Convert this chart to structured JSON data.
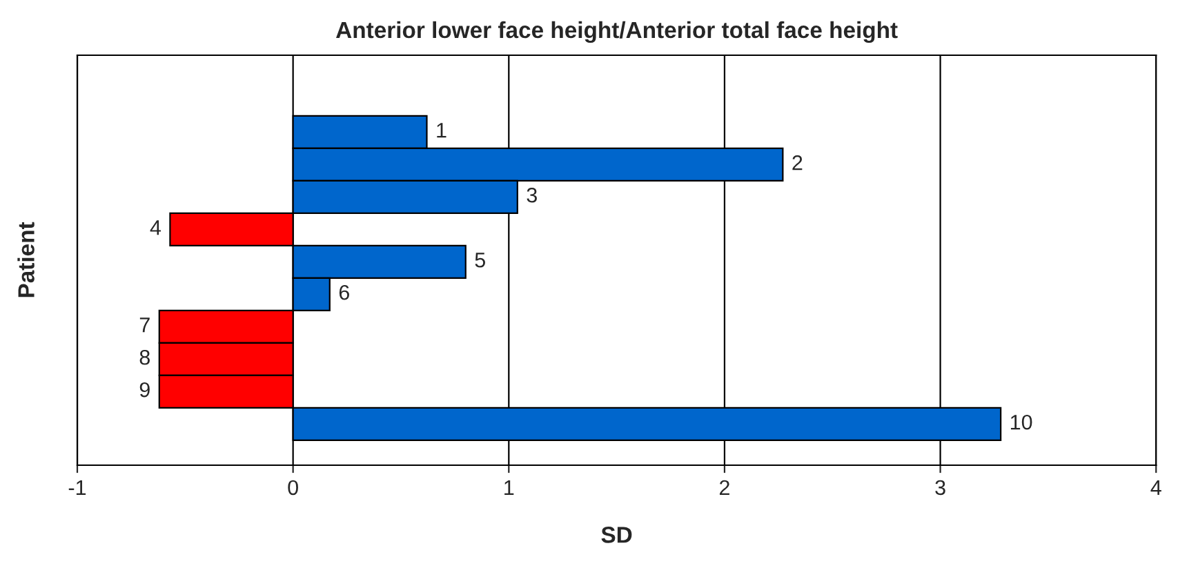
{
  "chart_data": {
    "type": "bar",
    "orientation": "horizontal",
    "title": "Anterior lower face height/Anterior total face height",
    "xlabel": "SD",
    "ylabel": "Patient",
    "categories": [
      "1",
      "2",
      "3",
      "4",
      "5",
      "6",
      "7",
      "8",
      "9",
      "10"
    ],
    "values": [
      0.62,
      2.27,
      1.04,
      -0.57,
      0.8,
      0.17,
      -0.62,
      -0.62,
      -0.62,
      3.28
    ],
    "colors": [
      "#0066cc",
      "#0066cc",
      "#0066cc",
      "#ff0000",
      "#0066cc",
      "#0066cc",
      "#ff0000",
      "#ff0000",
      "#ff0000",
      "#0066cc"
    ],
    "xlim": [
      -1,
      4
    ],
    "xticks": [
      -1,
      0,
      1,
      2,
      3,
      4
    ],
    "grid": "x",
    "legend": false,
    "tick_labels": "x"
  }
}
